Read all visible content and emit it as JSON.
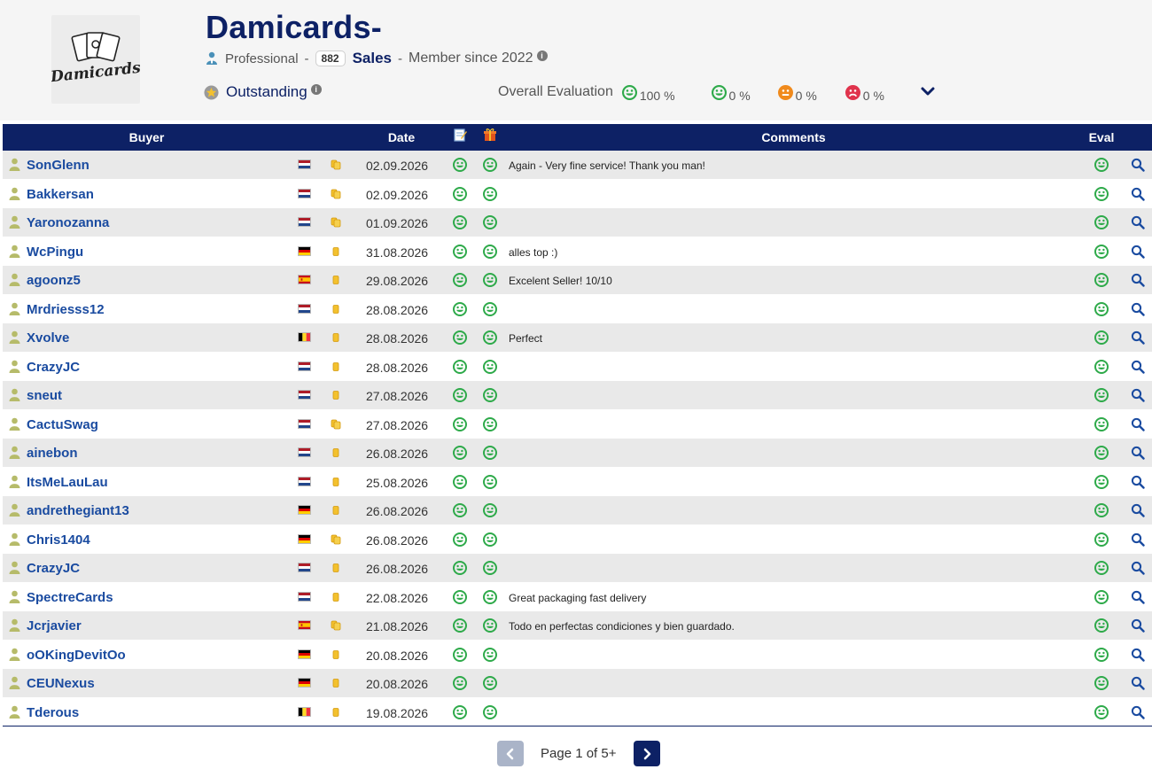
{
  "header": {
    "seller_name": "Damicards-",
    "logo_text": "Damicards",
    "account_type": "Professional",
    "sales_count": "882",
    "sales_label": "Sales",
    "member_since": "Member since 2022",
    "reputation": "Outstanding",
    "overall_label": "Overall Evaluation",
    "evaluations": [
      {
        "kind": "excellent",
        "color": "#2eaa4a",
        "value": "100 %"
      },
      {
        "kind": "good",
        "color": "#2eaa4a",
        "value": "0 %"
      },
      {
        "kind": "neutral",
        "color": "#f08a1c",
        "value": "0 %"
      },
      {
        "kind": "bad",
        "color": "#e0334c",
        "value": "0 %"
      }
    ]
  },
  "colors": {
    "brand": "#0d2165",
    "link": "#1a4ba0",
    "positive": "#2eaa4a",
    "user_icon": "#b6bb6a",
    "tag": "#f3c12e"
  },
  "table": {
    "headers": {
      "buyer": "Buyer",
      "date": "Date",
      "description_icon": "description-icon",
      "packaging_icon": "gift-icon",
      "comments": "Comments",
      "eval": "Eval"
    },
    "rows": [
      {
        "buyer": "SonGlenn",
        "country": "NL",
        "tag": "multi",
        "date": "02.09.2026",
        "comment": "Again - Very fine service! Thank you man!"
      },
      {
        "buyer": "Bakkersan",
        "country": "NL",
        "tag": "multi",
        "date": "02.09.2026",
        "comment": ""
      },
      {
        "buyer": "Yaronozanna",
        "country": "NL",
        "tag": "multi",
        "date": "01.09.2026",
        "comment": ""
      },
      {
        "buyer": "WcPingu",
        "country": "DE",
        "tag": "single",
        "date": "31.08.2026",
        "comment": "alles top :)"
      },
      {
        "buyer": "agoonz5",
        "country": "ES",
        "tag": "single",
        "date": "29.08.2026",
        "comment": "Excelent Seller! 10/10"
      },
      {
        "buyer": "Mrdriesss12",
        "country": "NL",
        "tag": "single",
        "date": "28.08.2026",
        "comment": ""
      },
      {
        "buyer": "Xvolve",
        "country": "BE",
        "tag": "single",
        "date": "28.08.2026",
        "comment": "Perfect"
      },
      {
        "buyer": "CrazyJC",
        "country": "NL",
        "tag": "single",
        "date": "28.08.2026",
        "comment": ""
      },
      {
        "buyer": "sneut",
        "country": "NL",
        "tag": "single",
        "date": "27.08.2026",
        "comment": ""
      },
      {
        "buyer": "CactuSwag",
        "country": "NL",
        "tag": "multi",
        "date": "27.08.2026",
        "comment": ""
      },
      {
        "buyer": "ainebon",
        "country": "NL",
        "tag": "single",
        "date": "26.08.2026",
        "comment": ""
      },
      {
        "buyer": "ItsMeLauLau",
        "country": "NL",
        "tag": "single",
        "date": "25.08.2026",
        "comment": ""
      },
      {
        "buyer": "andrethegiant13",
        "country": "DE",
        "tag": "single",
        "date": "26.08.2026",
        "comment": ""
      },
      {
        "buyer": "Chris1404",
        "country": "DE",
        "tag": "multi",
        "date": "26.08.2026",
        "comment": ""
      },
      {
        "buyer": "CrazyJC",
        "country": "NL",
        "tag": "single",
        "date": "26.08.2026",
        "comment": ""
      },
      {
        "buyer": "SpectreCards",
        "country": "NL",
        "tag": "single",
        "date": "22.08.2026",
        "comment": "Great packaging fast delivery"
      },
      {
        "buyer": "Jcrjavier",
        "country": "ES",
        "tag": "multi",
        "date": "21.08.2026",
        "comment": "Todo en perfectas condiciones y bien guardado."
      },
      {
        "buyer": "oOKingDevitOo",
        "country": "DE",
        "tag": "single",
        "date": "20.08.2026",
        "comment": ""
      },
      {
        "buyer": "CEUNexus",
        "country": "DE",
        "tag": "single",
        "date": "20.08.2026",
        "comment": ""
      },
      {
        "buyer": "Tderous",
        "country": "BE",
        "tag": "single",
        "date": "19.08.2026",
        "comment": ""
      }
    ]
  },
  "pagination": {
    "text": "Page 1 of 5+"
  }
}
